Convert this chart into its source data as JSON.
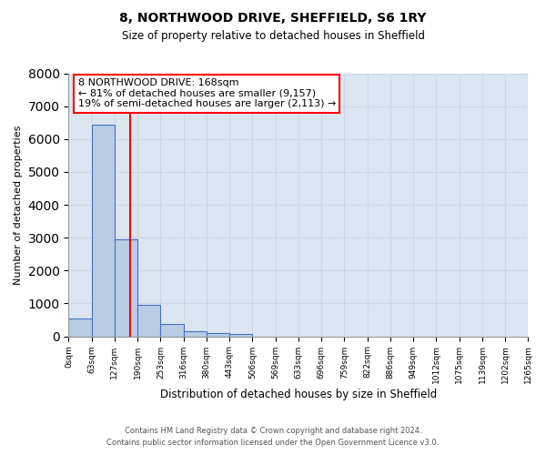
{
  "title": "8, NORTHWOOD DRIVE, SHEFFIELD, S6 1RY",
  "subtitle": "Size of property relative to detached houses in Sheffield",
  "xlabel": "Distribution of detached houses by size in Sheffield",
  "ylabel": "Number of detached properties",
  "footer_line1": "Contains HM Land Registry data © Crown copyright and database right 2024.",
  "footer_line2": "Contains public sector information licensed under the Open Government Licence v3.0.",
  "bar_values": [
    550,
    6450,
    2950,
    970,
    380,
    160,
    100,
    70,
    0,
    0,
    0,
    0,
    0,
    0,
    0,
    0,
    0,
    0,
    0,
    0
  ],
  "bin_labels": [
    "0sqm",
    "63sqm",
    "127sqm",
    "190sqm",
    "253sqm",
    "316sqm",
    "380sqm",
    "443sqm",
    "506sqm",
    "569sqm",
    "633sqm",
    "696sqm",
    "759sqm",
    "822sqm",
    "886sqm",
    "949sqm",
    "1012sqm",
    "1075sqm",
    "1139sqm",
    "1202sqm",
    "1265sqm"
  ],
  "bar_color": "#b8cce4",
  "bar_edge_color": "#4472c4",
  "grid_color": "#c8d8e8",
  "background_color": "#dce6f1",
  "annotation_text": "8 NORTHWOOD DRIVE: 168sqm\n← 81% of detached houses are smaller (9,157)\n19% of semi-detached houses are larger (2,113) →",
  "annotation_box_color": "white",
  "annotation_box_edge_color": "red",
  "vline_color": "red",
  "vline_x_bin": 2.67,
  "ylim": [
    0,
    8000
  ],
  "yticks": [
    0,
    1000,
    2000,
    3000,
    4000,
    5000,
    6000,
    7000,
    8000
  ],
  "num_bins": 20,
  "bin_width": 63
}
